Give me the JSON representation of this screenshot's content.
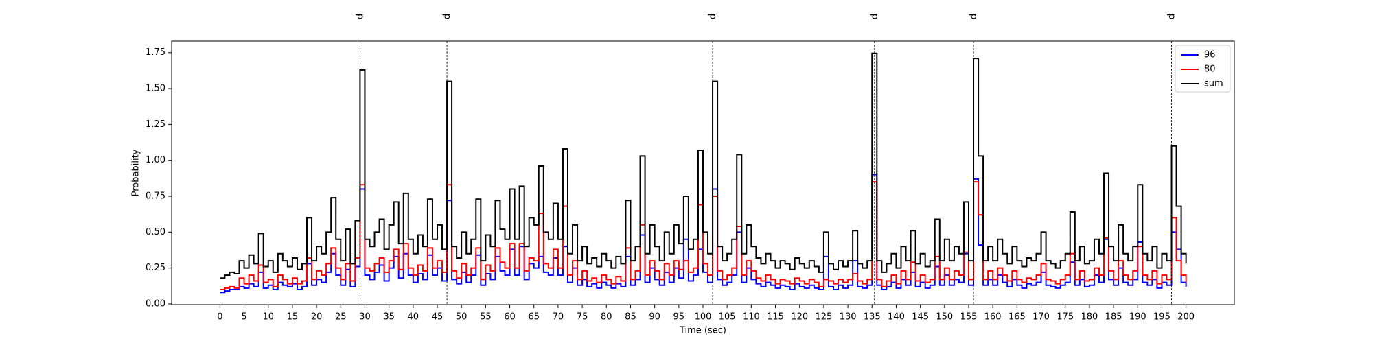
{
  "chart_data": {
    "type": "step",
    "xlabel": "Time (sec)",
    "ylabel": "Probability",
    "x": [
      0,
      1,
      2,
      3,
      4,
      5,
      6,
      7,
      8,
      9,
      10,
      11,
      12,
      13,
      14,
      15,
      16,
      17,
      18,
      19,
      20,
      21,
      22,
      23,
      24,
      25,
      26,
      27,
      28,
      29,
      30,
      31,
      32,
      33,
      34,
      35,
      36,
      37,
      38,
      39,
      40,
      41,
      42,
      43,
      44,
      45,
      46,
      47,
      48,
      49,
      50,
      51,
      52,
      53,
      54,
      55,
      56,
      57,
      58,
      59,
      60,
      61,
      62,
      63,
      64,
      65,
      66,
      67,
      68,
      69,
      70,
      71,
      72,
      73,
      74,
      75,
      76,
      77,
      78,
      79,
      80,
      81,
      82,
      83,
      84,
      85,
      86,
      87,
      88,
      89,
      90,
      91,
      92,
      93,
      94,
      95,
      96,
      97,
      98,
      99,
      100,
      101,
      102,
      103,
      104,
      105,
      106,
      107,
      108,
      109,
      110,
      111,
      112,
      113,
      114,
      115,
      116,
      117,
      118,
      119,
      120,
      121,
      122,
      123,
      124,
      125,
      126,
      127,
      128,
      129,
      130,
      131,
      132,
      133,
      134,
      135,
      136,
      137,
      138,
      139,
      140,
      141,
      142,
      143,
      144,
      145,
      146,
      147,
      148,
      149,
      150,
      151,
      152,
      153,
      154,
      155,
      156,
      157,
      158,
      159,
      160,
      161,
      162,
      163,
      164,
      165,
      166,
      167,
      168,
      169,
      170,
      171,
      172,
      173,
      174,
      175,
      176,
      177,
      178,
      179,
      180,
      181,
      182,
      183,
      184,
      185,
      186,
      187,
      188,
      189,
      190,
      191,
      192,
      193,
      194,
      195,
      196,
      197,
      198,
      199,
      200
    ],
    "series": [
      {
        "name": "96",
        "color": "#0000ff",
        "values": [
          0.08,
          0.09,
          0.1,
          0.1,
          0.12,
          0.11,
          0.14,
          0.12,
          0.22,
          0.11,
          0.13,
          0.1,
          0.15,
          0.13,
          0.12,
          0.14,
          0.1,
          0.12,
          0.28,
          0.13,
          0.17,
          0.15,
          0.22,
          0.35,
          0.2,
          0.13,
          0.24,
          0.12,
          0.26,
          0.8,
          0.2,
          0.17,
          0.22,
          0.27,
          0.16,
          0.25,
          0.33,
          0.18,
          0.35,
          0.2,
          0.15,
          0.21,
          0.17,
          0.34,
          0.2,
          0.25,
          0.16,
          0.72,
          0.17,
          0.14,
          0.22,
          0.15,
          0.2,
          0.34,
          0.13,
          0.21,
          0.17,
          0.33,
          0.23,
          0.2,
          0.38,
          0.2,
          0.4,
          0.17,
          0.28,
          0.25,
          0.33,
          0.22,
          0.2,
          0.32,
          0.2,
          0.4,
          0.15,
          0.25,
          0.13,
          0.17,
          0.12,
          0.14,
          0.11,
          0.15,
          0.13,
          0.11,
          0.14,
          0.12,
          0.33,
          0.13,
          0.17,
          0.48,
          0.15,
          0.25,
          0.17,
          0.13,
          0.22,
          0.15,
          0.25,
          0.18,
          0.45,
          0.16,
          0.2,
          0.38,
          0.22,
          0.15,
          0.8,
          0.17,
          0.13,
          0.15,
          0.2,
          0.5,
          0.15,
          0.25,
          0.17,
          0.14,
          0.12,
          0.15,
          0.13,
          0.11,
          0.13,
          0.12,
          0.1,
          0.14,
          0.12,
          0.11,
          0.13,
          0.11,
          0.1,
          0.33,
          0.12,
          0.1,
          0.13,
          0.11,
          0.13,
          0.3,
          0.12,
          0.11,
          0.13,
          0.9,
          0.13,
          0.1,
          0.12,
          0.15,
          0.11,
          0.17,
          0.13,
          0.22,
          0.12,
          0.15,
          0.11,
          0.13,
          0.26,
          0.13,
          0.2,
          0.13,
          0.17,
          0.15,
          0.35,
          0.13,
          0.87,
          0.41,
          0.13,
          0.17,
          0.13,
          0.2,
          0.15,
          0.12,
          0.17,
          0.13,
          0.11,
          0.14,
          0.13,
          0.15,
          0.22,
          0.13,
          0.12,
          0.11,
          0.13,
          0.15,
          0.29,
          0.13,
          0.17,
          0.12,
          0.13,
          0.2,
          0.15,
          0.45,
          0.17,
          0.13,
          0.25,
          0.15,
          0.13,
          0.17,
          0.43,
          0.15,
          0.13,
          0.17,
          0.11,
          0.15,
          0.13,
          0.5,
          0.38,
          0.15,
          0.12
        ]
      },
      {
        "name": "80",
        "color": "#ff0000",
        "values": [
          0.1,
          0.11,
          0.12,
          0.11,
          0.18,
          0.14,
          0.2,
          0.16,
          0.27,
          0.15,
          0.17,
          0.12,
          0.2,
          0.17,
          0.14,
          0.18,
          0.14,
          0.16,
          0.32,
          0.17,
          0.23,
          0.2,
          0.28,
          0.39,
          0.25,
          0.17,
          0.28,
          0.16,
          0.32,
          0.83,
          0.25,
          0.23,
          0.28,
          0.32,
          0.22,
          0.3,
          0.38,
          0.24,
          0.42,
          0.25,
          0.2,
          0.27,
          0.23,
          0.39,
          0.25,
          0.3,
          0.22,
          0.83,
          0.23,
          0.18,
          0.28,
          0.2,
          0.25,
          0.39,
          0.17,
          0.27,
          0.23,
          0.39,
          0.29,
          0.25,
          0.42,
          0.25,
          0.42,
          0.23,
          0.32,
          0.3,
          0.63,
          0.28,
          0.25,
          0.38,
          0.25,
          0.68,
          0.2,
          0.3,
          0.17,
          0.23,
          0.16,
          0.18,
          0.15,
          0.2,
          0.17,
          0.14,
          0.19,
          0.16,
          0.39,
          0.17,
          0.23,
          0.55,
          0.2,
          0.3,
          0.23,
          0.17,
          0.28,
          0.2,
          0.3,
          0.24,
          0.3,
          0.22,
          0.25,
          0.69,
          0.28,
          0.2,
          0.75,
          0.23,
          0.17,
          0.2,
          0.25,
          0.54,
          0.2,
          0.3,
          0.23,
          0.18,
          0.16,
          0.2,
          0.17,
          0.14,
          0.17,
          0.16,
          0.14,
          0.18,
          0.16,
          0.14,
          0.17,
          0.15,
          0.12,
          0.17,
          0.16,
          0.14,
          0.17,
          0.15,
          0.17,
          0.21,
          0.16,
          0.14,
          0.17,
          0.85,
          0.17,
          0.12,
          0.16,
          0.2,
          0.14,
          0.23,
          0.17,
          0.29,
          0.16,
          0.2,
          0.15,
          0.17,
          0.33,
          0.17,
          0.25,
          0.17,
          0.23,
          0.2,
          0.36,
          0.17,
          0.85,
          0.62,
          0.17,
          0.23,
          0.17,
          0.25,
          0.2,
          0.16,
          0.23,
          0.17,
          0.15,
          0.18,
          0.17,
          0.2,
          0.28,
          0.17,
          0.16,
          0.14,
          0.17,
          0.2,
          0.35,
          0.17,
          0.23,
          0.16,
          0.17,
          0.25,
          0.2,
          0.46,
          0.23,
          0.17,
          0.3,
          0.2,
          0.17,
          0.23,
          0.4,
          0.2,
          0.17,
          0.23,
          0.14,
          0.2,
          0.17,
          0.6,
          0.3,
          0.2,
          0.15
        ]
      },
      {
        "name": "sum",
        "color": "#000000",
        "values": [
          0.18,
          0.2,
          0.22,
          0.21,
          0.3,
          0.25,
          0.34,
          0.28,
          0.49,
          0.26,
          0.3,
          0.22,
          0.35,
          0.3,
          0.26,
          0.32,
          0.24,
          0.28,
          0.6,
          0.3,
          0.4,
          0.35,
          0.5,
          0.74,
          0.45,
          0.3,
          0.52,
          0.28,
          0.58,
          1.63,
          0.45,
          0.4,
          0.5,
          0.59,
          0.38,
          0.55,
          0.71,
          0.42,
          0.77,
          0.45,
          0.35,
          0.48,
          0.4,
          0.73,
          0.45,
          0.55,
          0.38,
          1.55,
          0.4,
          0.32,
          0.5,
          0.35,
          0.45,
          0.73,
          0.3,
          0.48,
          0.4,
          0.72,
          0.52,
          0.45,
          0.8,
          0.45,
          0.82,
          0.4,
          0.6,
          0.55,
          0.96,
          0.5,
          0.45,
          0.7,
          0.45,
          1.08,
          0.35,
          0.55,
          0.3,
          0.4,
          0.28,
          0.32,
          0.26,
          0.35,
          0.3,
          0.25,
          0.33,
          0.28,
          0.72,
          0.3,
          0.4,
          1.03,
          0.35,
          0.55,
          0.4,
          0.3,
          0.5,
          0.35,
          0.55,
          0.42,
          0.75,
          0.38,
          0.45,
          1.07,
          0.5,
          0.35,
          1.55,
          0.4,
          0.3,
          0.35,
          0.45,
          1.04,
          0.35,
          0.55,
          0.4,
          0.32,
          0.28,
          0.35,
          0.3,
          0.25,
          0.3,
          0.28,
          0.24,
          0.32,
          0.28,
          0.25,
          0.3,
          0.26,
          0.22,
          0.5,
          0.28,
          0.24,
          0.3,
          0.26,
          0.3,
          0.51,
          0.28,
          0.25,
          0.3,
          1.745,
          0.3,
          0.22,
          0.28,
          0.35,
          0.25,
          0.4,
          0.3,
          0.51,
          0.28,
          0.35,
          0.26,
          0.3,
          0.59,
          0.3,
          0.45,
          0.3,
          0.4,
          0.35,
          0.71,
          0.3,
          1.71,
          1.03,
          0.3,
          0.4,
          0.3,
          0.45,
          0.35,
          0.28,
          0.4,
          0.3,
          0.26,
          0.32,
          0.3,
          0.35,
          0.5,
          0.3,
          0.28,
          0.25,
          0.3,
          0.35,
          0.64,
          0.3,
          0.4,
          0.28,
          0.3,
          0.45,
          0.35,
          0.91,
          0.4,
          0.3,
          0.55,
          0.35,
          0.3,
          0.4,
          0.83,
          0.35,
          0.3,
          0.4,
          0.25,
          0.35,
          0.3,
          1.1,
          0.68,
          0.35,
          0.28
        ]
      }
    ],
    "events": [
      {
        "x": 29,
        "label": "p"
      },
      {
        "x": 47,
        "label": "p"
      },
      {
        "x": 102,
        "label": "p"
      },
      {
        "x": 135.5,
        "label": "p"
      },
      {
        "x": 156,
        "label": "p"
      },
      {
        "x": 197,
        "label": "p"
      }
    ],
    "xlim": [
      -10,
      210
    ],
    "xticks": [
      0,
      5,
      10,
      15,
      20,
      25,
      30,
      35,
      40,
      45,
      50,
      55,
      60,
      65,
      70,
      75,
      80,
      85,
      90,
      95,
      100,
      105,
      110,
      115,
      120,
      125,
      130,
      135,
      140,
      145,
      150,
      155,
      160,
      165,
      170,
      175,
      180,
      185,
      190,
      195,
      200
    ],
    "ylim": [
      -0.005,
      1.83
    ],
    "yticks": [
      {
        "value": 0,
        "label": "0.00"
      },
      {
        "value": 0.25,
        "label": "0.25"
      },
      {
        "value": 0.5,
        "label": "0.50"
      },
      {
        "value": 0.75,
        "label": "0.75"
      },
      {
        "value": 1,
        "label": "1.00"
      },
      {
        "value": 1.25,
        "label": "1.25"
      },
      {
        "value": 1.5,
        "label": "1.50"
      },
      {
        "value": 1.75,
        "label": "1.75"
      }
    ],
    "grid": false,
    "legend": "upper right"
  }
}
